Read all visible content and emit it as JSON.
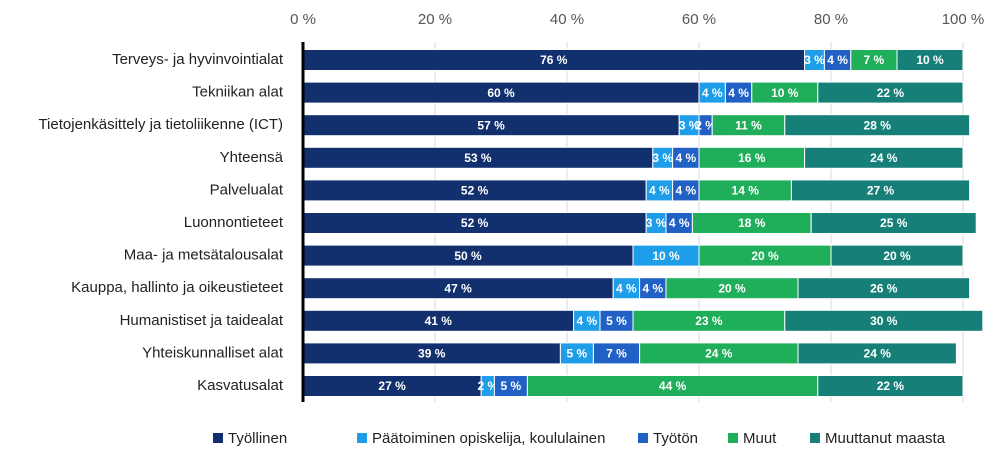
{
  "chart_data": {
    "type": "stacked-bar",
    "categories": [
      "Terveys- ja hyvinvointialat",
      "Tekniikan alat",
      "Tietojenkäsittely ja tietoliikenne (ICT)",
      "Yhteensä",
      "Palvelualat",
      "Luonnontieteet",
      "Maa- ja metsätalousalat",
      "Kauppa, hallinto ja oikeustieteet",
      "Humanistiset ja taidealat",
      "Yhteiskunnalliset alat",
      "Kasvatusalat"
    ],
    "series": [
      {
        "name": "Työllinen",
        "color": "#13306e",
        "values": [
          76,
          60,
          57,
          53,
          52,
          52,
          50,
          47,
          41,
          39,
          27
        ],
        "value_labels": [
          "76 %",
          "60 %",
          "57 %",
          "53 %",
          "52 %",
          "52 %",
          "50 %",
          "47 %",
          "41 %",
          "39 %",
          "27 %"
        ]
      },
      {
        "name": "Päätoiminen opiskelija, koululainen",
        "color": "#1e9de8",
        "values": [
          3,
          4,
          3,
          3,
          4,
          3,
          10,
          4,
          4,
          5,
          2
        ],
        "value_labels": [
          "3 %",
          "4 %",
          "3 %",
          "3 %",
          "4 %",
          "3 %",
          "10 %",
          "4 %",
          "4 %",
          "5 %",
          "2 %"
        ]
      },
      {
        "name": "Työtön",
        "color": "#2160c4",
        "values": [
          4,
          4,
          2,
          4,
          4,
          4,
          null,
          4,
          5,
          7,
          5
        ],
        "value_labels": [
          "4 %",
          "4 %",
          "2 %",
          "4 %",
          "4 %",
          "4 %",
          null,
          "4 %",
          "5 %",
          "7 %",
          "5 %"
        ]
      },
      {
        "name": "Muut",
        "color": "#1fae5a",
        "values": [
          7,
          10,
          11,
          16,
          14,
          18,
          20,
          20,
          23,
          24,
          44
        ],
        "value_labels": [
          "7 %",
          "10 %",
          "11 %",
          "16 %",
          "14 %",
          "18 %",
          "20 %",
          "20 %",
          "23 %",
          "24 %",
          "44 %"
        ]
      },
      {
        "name": "Muuttanut maasta",
        "color": "#168078",
        "values": [
          10,
          22,
          28,
          24,
          27,
          25,
          20,
          26,
          30,
          24,
          22
        ],
        "value_labels": [
          "10 %",
          "22 %",
          "28 %",
          "24 %",
          "27 %",
          "25 %",
          "20 %",
          "26 %",
          "30 %",
          "24 %",
          "22 %"
        ]
      }
    ],
    "xlim": [
      0,
      100
    ],
    "xticks": [
      {
        "value": 0,
        "label": "0 %"
      },
      {
        "value": 20,
        "label": "20 %"
      },
      {
        "value": 40,
        "label": "40 %"
      },
      {
        "value": 60,
        "label": "60 %"
      },
      {
        "value": 80,
        "label": "80 %"
      },
      {
        "value": 100,
        "label": "100 %"
      }
    ],
    "grid": true
  }
}
